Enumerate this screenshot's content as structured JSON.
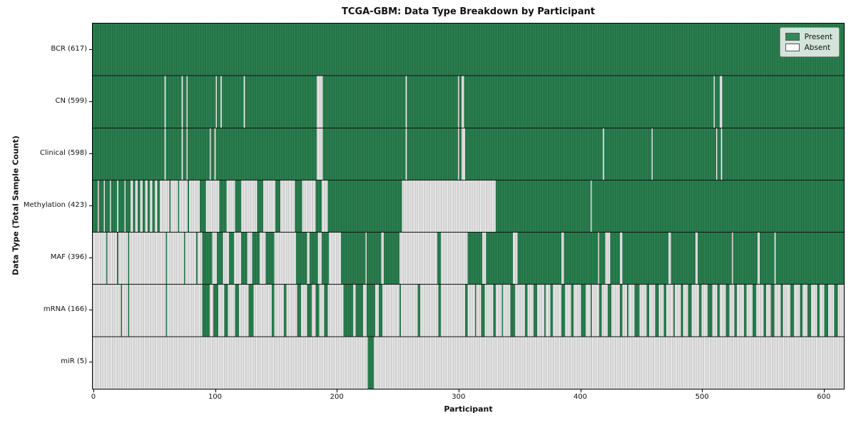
{
  "chart_data": {
    "type": "heatmap",
    "title": "TCGA-GBM: Data Type Breakdown by Participant",
    "xlabel": "Participant",
    "ylabel": "Data Type (Total Sample Count)",
    "x_ticks": [
      0,
      100,
      200,
      300,
      400,
      500,
      600
    ],
    "x_range": [
      0,
      616
    ],
    "n_participants": 617,
    "grid": "per-cell vertical stripes, black row separators",
    "legend": {
      "position": "upper right",
      "entries": [
        {
          "label": "Present",
          "color": "#2e8b57"
        },
        {
          "label": "Absent",
          "color": "#ffffff"
        }
      ]
    },
    "colors": {
      "present": "#2e8b57",
      "absent": "#fcfcfc",
      "cell_grid": "rgba(0,0,0,0.42)",
      "row_separator": "#111111",
      "plot_border": "#000000"
    },
    "run_encoding": "space-separated runs along the participant axis; pN = N present cells, aN = N absent cells; each row sums to 617",
    "rows": [
      {
        "label": "BCR (617)",
        "name": "BCR",
        "present_count": 617,
        "runs": "p617"
      },
      {
        "label": "CN (599)",
        "name": "CN",
        "present_count": 599,
        "runs": "p59 a1 p13 a1 p3 a1 p23 a1 p3 a1 p18 a1 p59 a5 p68 a1 p42 a1 p2 a2 p205 a1 p4 a2 p100"
      },
      {
        "label": "Clinical (598)",
        "name": "Clinical",
        "present_count": 598,
        "runs": "p59 a1 p13 a1 p3 a1 p18 a1 p3 a1 p83 a5 p68 a1 p42 a1 p2 a3 p113 a1 p39 a1 p52 a1 p3 a1 p100"
      },
      {
        "label": "Methylation (423)",
        "name": "Methylation",
        "present_count": 423,
        "runs": "p4 a1 p4 a1 p4 a1 p5 a1 p5 a1 p4 a2 p2 a2 p2 a2 p2 a2 p2 a2 p2 a2 p2 a8 p1 a6 p1 a7 p1 a9 p5 a11 p6 a7 p5 a13 p5 a10 p4 a12 p6 a11 p5 a5 p61 a77 p78 a1 p207"
      },
      {
        "label": "MAF (396)",
        "name": "MAF",
        "present_count": 396,
        "runs": "a11 p1 a8 p1 a8 p1 a30 p1 a14 p1 a9 p1 a4 p8 a4 p5 a5 p4 a6 p5 a4 p6 a5 p7 a18 p9 a2 p7 a3 p6 a10 p20 a1 p12 a2 p13 a31 p3 a22 p12 a3 p22 a4 p36 a2 p28 a1 p5 a4 p8 a2 p38 a2 p20 a2 p28 a1 p20 a2 p12 a1 p56"
      },
      {
        "label": "mRNA (166)",
        "name": "mRNA",
        "present_count": 166,
        "runs": "a23 p1 a5 p1 a30 p1 a29 p6 a3 p4 a5 p3 a6 p3 a8 p4 a15 p2 a8 p2 a9 p3 a5 p4 a3 p3 a4 p3 a13 p8 a2 p6 a3 p7 a3 p3 a14 p1 a14 p2 a15 p2 a20 p2 a6 p1 a4 p3 a7 p2 a5 p1 a6 p4 a8 p2 a5 p3 a6 p1 a4 p2 a7 p3 a5 p2 a6 p4 a4 p1 a6 p2 a5 p3 a7 p2 a4 p1 a5 p4 a6 p2 a5 p3 a4 p2 a6 p1 a5 p2 a4 p3 a6 p2 a5 p4 a4 p2 a5 p3 a4 p2 a6 p2 a5 p3 a6 p2 a4 p3 a5 p2 a6 p3 a5 p2 a4 p3 a5 p2 a4 p3 a5 p3 a5"
      },
      {
        "label": "miR (5)",
        "name": "miR",
        "present_count": 5,
        "runs": "a226 p5 a386"
      }
    ]
  }
}
